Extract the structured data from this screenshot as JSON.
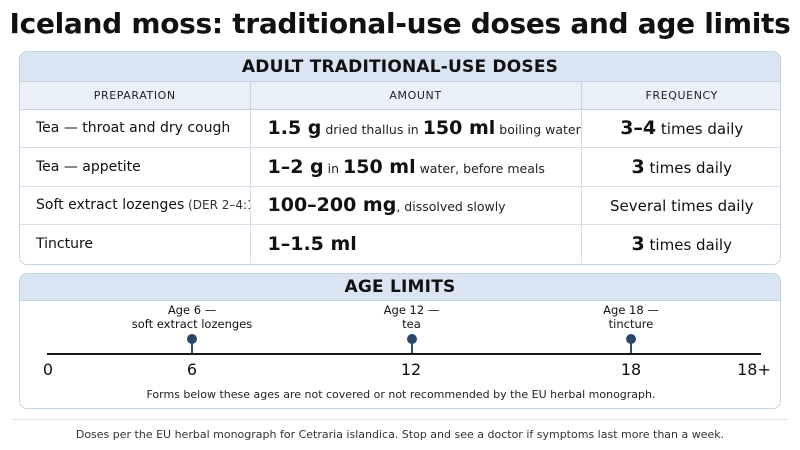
{
  "title": "Iceland moss: traditional-use doses and age limits",
  "doses": {
    "heading": "ADULT TRADITIONAL-USE DOSES",
    "columns": [
      "PREPARATION",
      "AMOUNT",
      "FREQUENCY"
    ],
    "rows": [
      {
        "preparation": "Tea — throat and dry cough",
        "preparation_note": "",
        "amount_value": "1.5 g",
        "amount_mid": " dried thallus in ",
        "amount_value2": "150 ml",
        "amount_tail": " boiling water",
        "freq_value": "3–4",
        "freq_tail": " times daily"
      },
      {
        "preparation": "Tea — appetite",
        "preparation_note": "",
        "amount_value": "1–2 g",
        "amount_mid": " in ",
        "amount_value2": "150 ml",
        "amount_tail": " water, before meals",
        "freq_value": "3",
        "freq_tail": " times daily"
      },
      {
        "preparation": "Soft extract lozenges",
        "preparation_note": " (DER 2–4:1)",
        "amount_value": "100–200 mg",
        "amount_mid": ", dissolved slowly",
        "amount_value2": "",
        "amount_tail": "",
        "freq_value": "",
        "freq_tail": "Several times daily"
      },
      {
        "preparation": "Tincture",
        "preparation_note": "",
        "amount_value": "1–1.5 ml",
        "amount_mid": "",
        "amount_value2": "",
        "amount_tail": "",
        "freq_value": "3",
        "freq_tail": " times daily"
      }
    ]
  },
  "age_limits": {
    "heading": "AGE LIMITS",
    "axis_min": 0,
    "axis_max": 18,
    "axis_ticks": [
      "0",
      "6",
      "12",
      "18",
      "18+"
    ],
    "markers": [
      {
        "age": 6,
        "line1": "Age 6 —",
        "line2": "soft extract lozenges"
      },
      {
        "age": 12,
        "line1": "Age 12 —",
        "line2": "tea"
      },
      {
        "age": 18,
        "line1": "Age 18 —",
        "line2": "tincture"
      }
    ],
    "note": "Forms below these ages are not covered or not recommended by the EU herbal monograph."
  },
  "footer": "Doses per the EU herbal monograph for Cetraria islandica. Stop and see a doctor if symptoms last more than a week.",
  "colors": {
    "panel_header": "#d9e5f2",
    "column_header": "#e9f0f8",
    "border": "#c6d3e2",
    "marker": "#2a466a"
  }
}
